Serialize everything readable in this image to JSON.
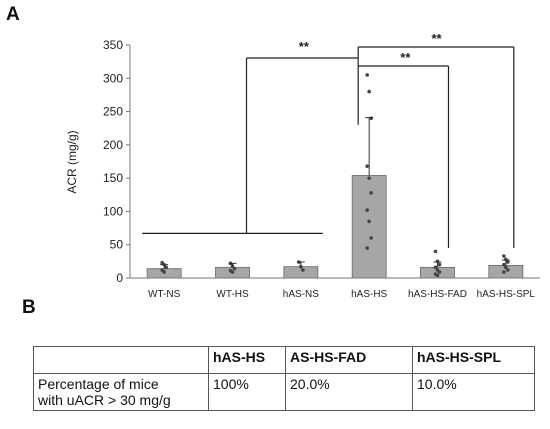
{
  "panels": {
    "a": "A",
    "b": "B"
  },
  "chart_data": {
    "type": "bar",
    "ylabel": "ACR (mg/g)",
    "xlabel": "",
    "ylim": [
      0,
      350
    ],
    "yticks": [
      0,
      50,
      100,
      150,
      200,
      250,
      300,
      350
    ],
    "categories": [
      "WT-NS",
      "WT-HS",
      "hAS-NS",
      "hAS-HS",
      "hAS-HS-FAD",
      "hAS-HS-SPL"
    ],
    "values": [
      14,
      16,
      17,
      154,
      16,
      19
    ],
    "error": [
      6,
      6,
      7,
      87,
      8,
      8
    ],
    "points": [
      [
        23,
        20,
        16,
        12,
        9
      ],
      [
        22,
        18,
        14,
        11,
        9
      ],
      [
        24,
        17,
        12
      ],
      [
        305,
        280,
        240,
        168,
        150,
        128,
        102,
        85,
        60,
        45
      ],
      [
        40,
        25,
        20,
        16,
        12,
        9,
        6,
        4
      ],
      [
        33,
        28,
        24,
        20,
        16,
        12,
        9
      ]
    ],
    "bar_color": "#a6a6a6",
    "grid": false,
    "significance": [
      {
        "label": "**"
      },
      {
        "label": "**"
      },
      {
        "label": "**"
      }
    ]
  },
  "table": {
    "headers": [
      "",
      "hAS-HS",
      "AS-HS-FAD",
      "hAS-HS-SPL"
    ],
    "row_label_lines": [
      "Percentage of  mice",
      "with uACR > 30 mg/g"
    ],
    "values": [
      "100%",
      "20.0%",
      "10.0%"
    ]
  }
}
